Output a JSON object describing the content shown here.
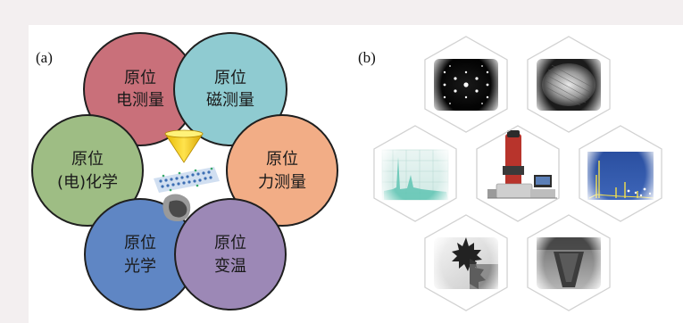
{
  "panel_a": {
    "label": "(a)",
    "circles": [
      {
        "line1": "原位",
        "line2": "电测量",
        "color": "#c9707a"
      },
      {
        "line1": "原位",
        "line2": "磁测量",
        "color": "#8fcbd1"
      },
      {
        "line1": "原位",
        "line2": "(电)化学",
        "color": "#9ebd84"
      },
      {
        "line1": "原位",
        "line2": "力测量",
        "color": "#f2ad86"
      },
      {
        "line1": "原位",
        "line2": "光学",
        "color": "#5f86c4"
      },
      {
        "line1": "原位",
        "line2": "变温",
        "color": "#9c88b6"
      }
    ],
    "center_icon": "electron-beam-sample-icon"
  },
  "panel_b": {
    "label": "(b)",
    "hexagons": [
      {
        "icon": "diffraction-pattern-icon"
      },
      {
        "icon": "atomic-lattice-image-icon"
      },
      {
        "icon": "spectrum-graph-icon"
      },
      {
        "icon": "electron-microscope-icon"
      },
      {
        "icon": "eds-spectrum-icon"
      },
      {
        "icon": "dendrite-micrograph-icon"
      },
      {
        "icon": "nanostructure-micrograph-icon"
      }
    ]
  }
}
